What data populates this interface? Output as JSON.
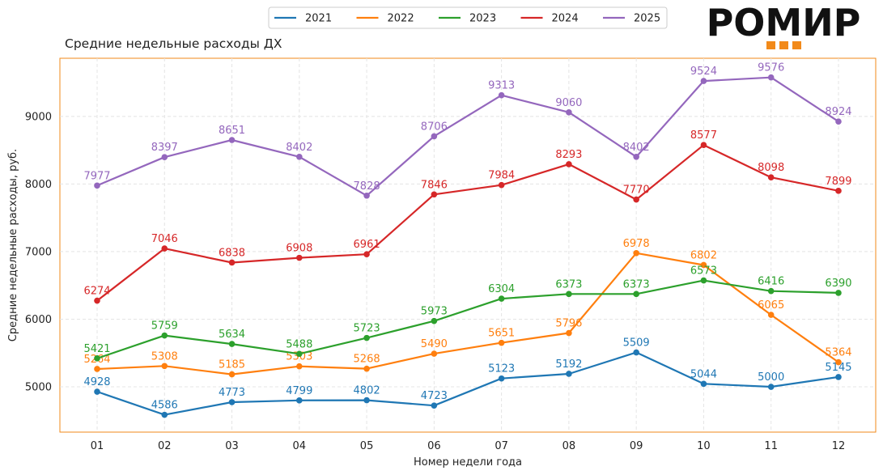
{
  "logo": {
    "text": "РОМИР",
    "accent": "#f28a1a"
  },
  "chart_data": {
    "type": "line",
    "title": "Средние недельные расходы ДХ",
    "xlabel": "Номер недели года",
    "ylabel": "Средние недельные расходы, руб.",
    "categories": [
      "01",
      "02",
      "03",
      "04",
      "05",
      "06",
      "07",
      "08",
      "09",
      "10",
      "11",
      "12"
    ],
    "ylim": [
      4330,
      9860
    ],
    "yticks": [
      5000,
      6000,
      7000,
      8000,
      9000
    ],
    "grid": true,
    "legend": "top-center",
    "frame_color": "#f28a1a",
    "series": [
      {
        "name": "2021",
        "color": "#1f77b4",
        "values": [
          4928,
          4586,
          4773,
          4799,
          4802,
          4723,
          5123,
          5192,
          5509,
          5044,
          5000,
          5145
        ]
      },
      {
        "name": "2022",
        "color": "#ff7f0e",
        "values": [
          5264,
          5308,
          5185,
          5303,
          5268,
          5490,
          5651,
          5796,
          6978,
          6802,
          6065,
          5364
        ]
      },
      {
        "name": "2023",
        "color": "#2ca02c",
        "values": [
          5421,
          5759,
          5634,
          5488,
          5723,
          5973,
          6304,
          6373,
          6373,
          6573,
          6416,
          6390
        ]
      },
      {
        "name": "2024",
        "color": "#d62728",
        "values": [
          6274,
          7046,
          6838,
          6908,
          6961,
          7846,
          7984,
          8293,
          7770,
          8577,
          8098,
          7899
        ]
      },
      {
        "name": "2025",
        "color": "#9467bd",
        "values": [
          7977,
          8397,
          8651,
          8402,
          7828,
          8706,
          9313,
          9060,
          8402,
          9524,
          9576,
          8924
        ]
      }
    ]
  }
}
